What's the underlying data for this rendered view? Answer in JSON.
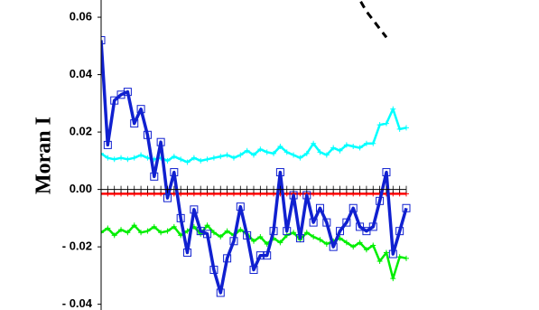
{
  "chart_data": {
    "type": "line",
    "ylabel": "Moran I",
    "categories": [
      null,
      null,
      null,
      null,
      null,
      null,
      null,
      null,
      null,
      null,
      null,
      null,
      null,
      null,
      null,
      null,
      null,
      null,
      null,
      null,
      null,
      null,
      null,
      null,
      null,
      null,
      null,
      null,
      null,
      null,
      null,
      null,
      null,
      null,
      null,
      null,
      null,
      null,
      null,
      null,
      null,
      null,
      null,
      null,
      null,
      null,
      null
    ],
    "ylim": [
      -0.042,
      0.066
    ],
    "yticks": [
      {
        "value": -0.04,
        "label": "- 0.04"
      },
      {
        "value": -0.02,
        "label": "- 0.02"
      },
      {
        "value": 0,
        "label": "0.00"
      },
      0.02,
      0.04,
      0.06
    ],
    "series": [
      {
        "color": "#00ffff",
        "marker": "plus",
        "values": [
          0.0125,
          0.011,
          0.0105,
          0.011,
          0.0105,
          0.011,
          0.012,
          0.011,
          0.0105,
          0.011,
          0.01,
          0.0115,
          0.0105,
          0.0095,
          0.011,
          0.01,
          0.0105,
          0.011,
          0.0115,
          0.012,
          0.011,
          0.012,
          0.0135,
          0.012,
          0.014,
          0.013,
          0.0125,
          0.015,
          0.013,
          0.012,
          0.011,
          0.0125,
          0.016,
          0.013,
          0.012,
          0.0145,
          0.0135,
          0.0155,
          0.015,
          0.0145,
          0.016,
          0.016,
          0.0225,
          0.023,
          0.028,
          0.021,
          0.0215
        ]
      },
      {
        "color": "#00ee00",
        "marker": "plus",
        "values": [
          -0.015,
          -0.0135,
          -0.016,
          -0.014,
          -0.015,
          -0.0125,
          -0.015,
          -0.0145,
          -0.013,
          -0.015,
          -0.0145,
          -0.013,
          -0.016,
          -0.0145,
          -0.013,
          -0.0155,
          -0.0125,
          -0.015,
          -0.0165,
          -0.0145,
          -0.016,
          -0.014,
          -0.0155,
          -0.018,
          -0.0165,
          -0.019,
          -0.017,
          -0.0185,
          -0.016,
          -0.015,
          -0.0175,
          -0.015,
          -0.0165,
          -0.0175,
          -0.019,
          -0.018,
          -0.017,
          -0.0185,
          -0.02,
          -0.0185,
          -0.021,
          -0.0195,
          -0.025,
          -0.022,
          -0.031,
          -0.0235,
          -0.024
        ]
      },
      {
        "color": "#ff0000",
        "marker": "plus",
        "values": [
          -0.0015,
          -0.0015,
          -0.0015,
          -0.0015,
          -0.0015,
          -0.0015,
          -0.0015,
          -0.0015,
          -0.0015,
          -0.0015,
          -0.0015,
          -0.0015,
          -0.0015,
          -0.0015,
          -0.0015,
          -0.0015,
          -0.0015,
          -0.0015,
          -0.0015,
          -0.0015,
          -0.0015,
          -0.0015,
          -0.0015,
          -0.0015,
          -0.0015,
          -0.0015,
          -0.0015,
          -0.0015,
          -0.0015,
          -0.0015,
          -0.0015,
          -0.0015,
          -0.0015,
          -0.0015,
          -0.0015,
          -0.0015,
          -0.0015,
          -0.0015,
          -0.0015,
          -0.0015,
          -0.0015,
          -0.0015,
          -0.0015,
          -0.0015,
          -0.0015,
          -0.0015,
          -0.0015
        ]
      },
      {
        "color": "#1020d0",
        "marker": "square",
        "values": [
          0.052,
          0.0155,
          0.031,
          0.033,
          0.034,
          0.023,
          0.028,
          0.019,
          0.0045,
          0.0165,
          -0.003,
          0.006,
          -0.01,
          -0.022,
          -0.007,
          -0.0145,
          -0.0155,
          -0.028,
          -0.036,
          -0.024,
          -0.018,
          -0.006,
          -0.016,
          -0.028,
          -0.023,
          -0.023,
          -0.0145,
          0.006,
          -0.0145,
          -0.002,
          -0.017,
          -0.002,
          -0.0115,
          -0.0065,
          -0.0115,
          -0.02,
          -0.0145,
          -0.0115,
          -0.0065,
          -0.013,
          -0.0145,
          -0.013,
          -0.004,
          0.006,
          -0.0225,
          -0.0145,
          -0.0065
        ]
      },
      {
        "color": "#000000",
        "marker": "none",
        "dash": true,
        "values": [
          null,
          null,
          null,
          null,
          null,
          null,
          null,
          null,
          null,
          null,
          null,
          null,
          null,
          null,
          null,
          null,
          null,
          null,
          null,
          null,
          null,
          null,
          null,
          null,
          null,
          null,
          null,
          null,
          null,
          null,
          null,
          null,
          null,
          null,
          null,
          null,
          null,
          null,
          0.069,
          0.066,
          0.062,
          0.059,
          0.056,
          0.053,
          null,
          null,
          null
        ]
      }
    ]
  }
}
